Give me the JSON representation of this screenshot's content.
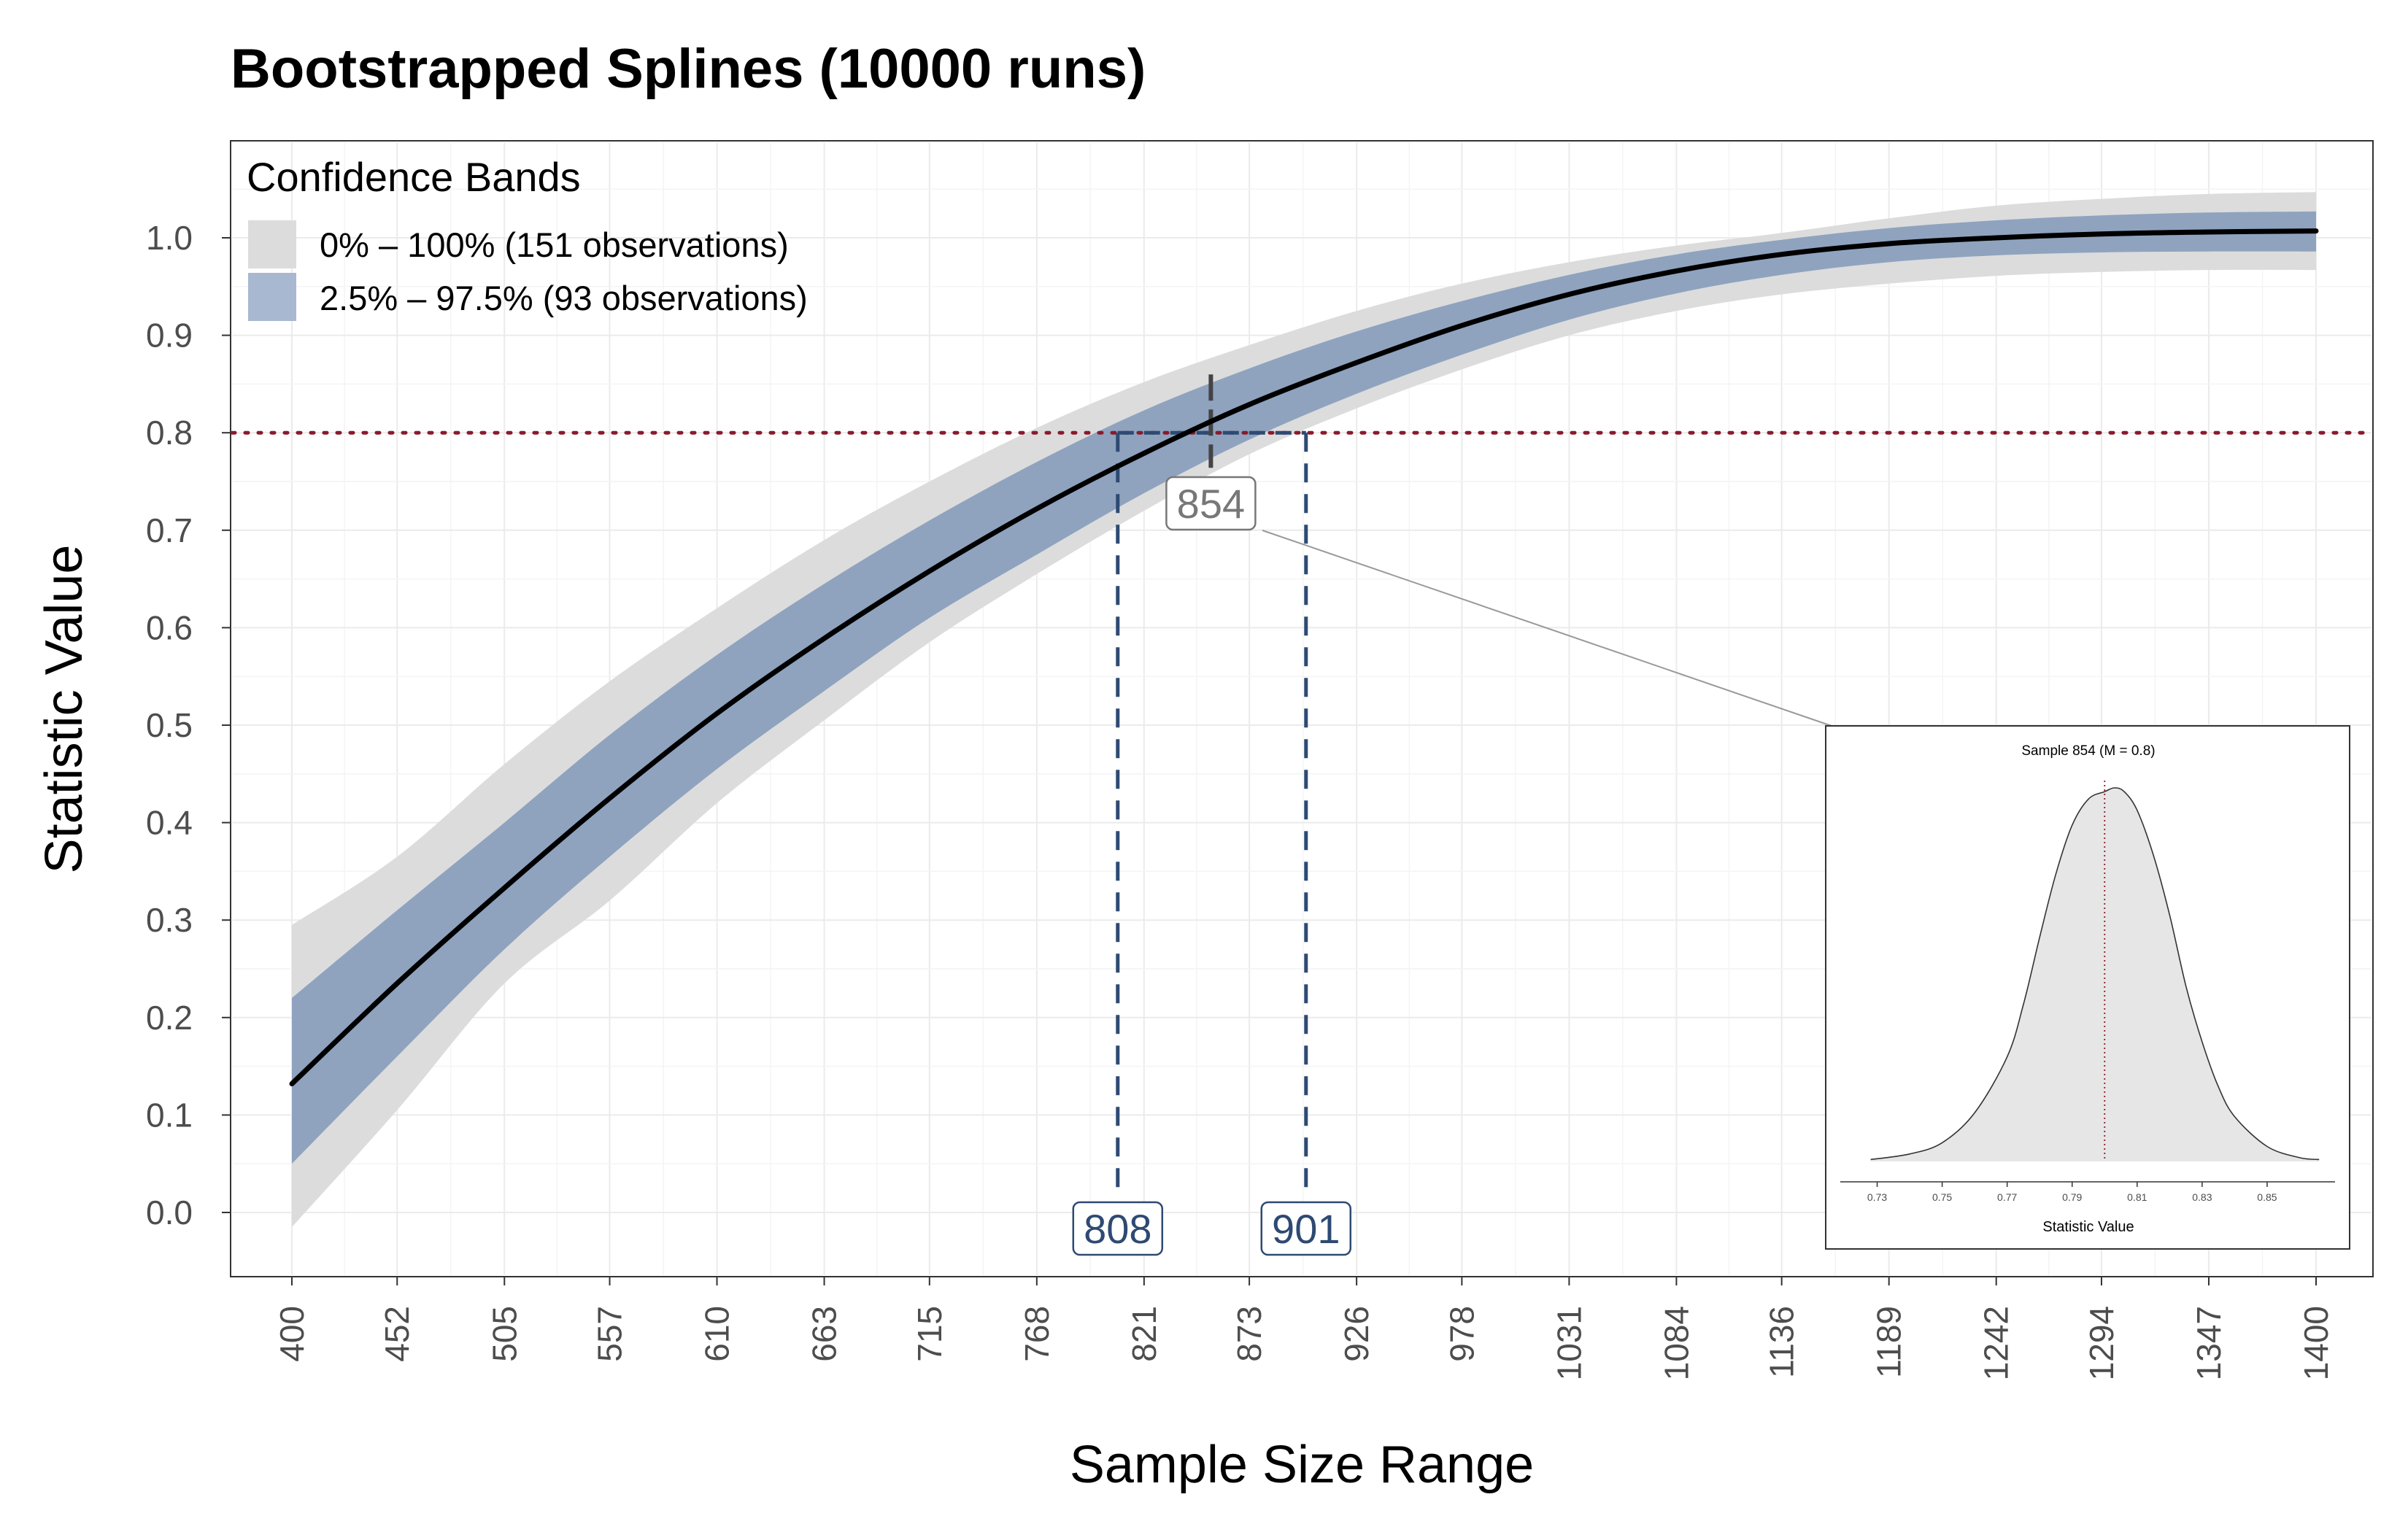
{
  "chart_data": {
    "type": "line",
    "title": "Bootstrapped Splines (10000 runs)",
    "xlabel": "Sample Size Range",
    "ylabel": "Statistic Value",
    "xlim": [
      400,
      1400
    ],
    "ylim": [
      0.0,
      1.0
    ],
    "x_ticks": [
      "400",
      "452",
      "505",
      "557",
      "610",
      "663",
      "715",
      "768",
      "821",
      "873",
      "926",
      "978",
      "1031",
      "1084",
      "1136",
      "1189",
      "1242",
      "1294",
      "1347",
      "1400"
    ],
    "y_ticks": [
      "0.0",
      "0.1",
      "0.2",
      "0.3",
      "0.4",
      "0.5",
      "0.6",
      "0.7",
      "0.8",
      "0.9",
      "1.0"
    ],
    "grid": true,
    "legend": {
      "title": "Confidence Bands",
      "placement": "top-left",
      "entries": [
        {
          "label": "0% – 100% (151 observations)",
          "color": "#dcdcdc"
        },
        {
          "label": "2.5% – 97.5% (93 observations)",
          "color": "#8fa3bf"
        }
      ]
    },
    "x": [
      400,
      452,
      505,
      557,
      610,
      663,
      715,
      768,
      821,
      873,
      926,
      978,
      1031,
      1084,
      1136,
      1189,
      1242,
      1294,
      1347,
      1400
    ],
    "series": [
      {
        "role": "median",
        "values": [
          0.132,
          0.235,
          0.333,
          0.425,
          0.512,
          0.589,
          0.658,
          0.722,
          0.779,
          0.829,
          0.872,
          0.91,
          0.942,
          0.966,
          0.983,
          0.994,
          1.0,
          1.004,
          1.006,
          1.007
        ]
      },
      {
        "role": "band-2.5-97.5-lower",
        "values": [
          0.05,
          0.16,
          0.27,
          0.365,
          0.455,
          0.535,
          0.61,
          0.675,
          0.738,
          0.793,
          0.84,
          0.88,
          0.916,
          0.943,
          0.962,
          0.975,
          0.982,
          0.985,
          0.986,
          0.986
        ]
      },
      {
        "role": "band-2.5-97.5-upper",
        "values": [
          0.22,
          0.31,
          0.4,
          0.49,
          0.572,
          0.645,
          0.71,
          0.77,
          0.823,
          0.866,
          0.904,
          0.935,
          0.962,
          0.983,
          0.998,
          1.01,
          1.018,
          1.023,
          1.026,
          1.027
        ]
      },
      {
        "role": "band-0-100-lower",
        "values": [
          -0.015,
          0.105,
          0.235,
          0.32,
          0.42,
          0.505,
          0.585,
          0.655,
          0.72,
          0.778,
          0.825,
          0.865,
          0.9,
          0.925,
          0.942,
          0.953,
          0.961,
          0.965,
          0.967,
          0.967
        ]
      },
      {
        "role": "band-0-100-upper",
        "values": [
          0.295,
          0.365,
          0.46,
          0.545,
          0.62,
          0.69,
          0.75,
          0.805,
          0.852,
          0.89,
          0.925,
          0.953,
          0.975,
          0.992,
          1.005,
          1.02,
          1.033,
          1.04,
          1.045,
          1.047
        ]
      }
    ],
    "threshold": 0.8,
    "markers": [
      {
        "label": "808",
        "x": 808,
        "kind": "band-lower"
      },
      {
        "label": "901",
        "x": 901,
        "kind": "band-upper"
      },
      {
        "label": "854",
        "x": 854,
        "kind": "median"
      }
    ],
    "colors": {
      "band_outer": "#dcdcdc",
      "band_inner": "#8fa3bf",
      "median_line": "#000000",
      "threshold_line": "#8b1a2b",
      "marker_line": "#2e4a73"
    },
    "inset": {
      "type": "area",
      "title": "Sample 854 (M = 0.8)",
      "xlabel": "Statistic Value",
      "x_ticks": [
        "0.73",
        "0.75",
        "0.77",
        "0.79",
        "0.81",
        "0.83",
        "0.85"
      ],
      "xlim": [
        0.72,
        0.87
      ],
      "mean": 0.8,
      "x": [
        0.728,
        0.74,
        0.75,
        0.76,
        0.77,
        0.775,
        0.78,
        0.785,
        0.79,
        0.795,
        0.8,
        0.803,
        0.806,
        0.81,
        0.815,
        0.82,
        0.825,
        0.83,
        0.835,
        0.84,
        0.85,
        0.86,
        0.866
      ],
      "density": [
        0.005,
        0.02,
        0.05,
        0.13,
        0.28,
        0.42,
        0.6,
        0.77,
        0.9,
        0.97,
        0.99,
        1.0,
        0.99,
        0.94,
        0.82,
        0.66,
        0.47,
        0.32,
        0.2,
        0.12,
        0.04,
        0.01,
        0.005
      ]
    }
  }
}
